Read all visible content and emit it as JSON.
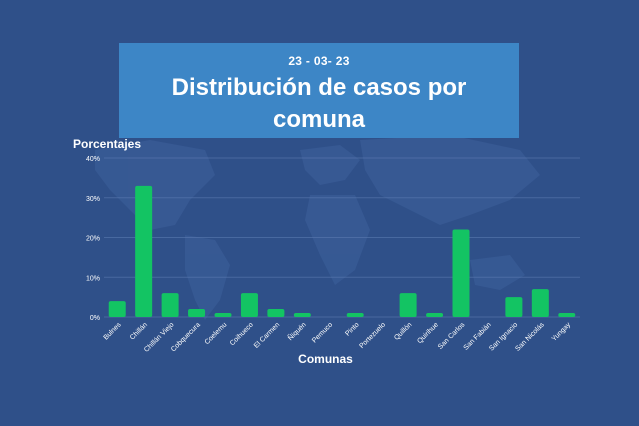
{
  "header": {
    "date": "23 - 03- 23",
    "title": "Distribución de casos por comuna"
  },
  "chart_data": {
    "type": "bar",
    "title": "Distribución de casos por comuna",
    "subtitle": "23 - 03- 23",
    "ylabel": "Porcentajes",
    "xlabel": "Comunas",
    "ylim": [
      0,
      40
    ],
    "yticks": [
      "0%",
      "10%",
      "20%",
      "30%",
      "40%"
    ],
    "ytick_values": [
      0,
      10,
      20,
      30,
      40
    ],
    "grid": true,
    "bar_color": "#13c463",
    "categories": [
      "Bulnes",
      "Chillán",
      "Chillán Viejo",
      "Cobquecura",
      "Coelemu",
      "Coihueco",
      "El Carmen",
      "Ñiquén",
      "Pemuco",
      "Pinto",
      "Portezuelo",
      "Quillón",
      "Quirihue",
      "San Carlos",
      "San Fabián",
      "San Ignacio",
      "San Nicolás",
      "Yungay"
    ],
    "values": [
      4,
      33,
      6,
      2,
      1,
      6,
      2,
      1,
      0,
      1,
      0,
      6,
      1,
      22,
      0,
      5,
      7,
      1
    ]
  }
}
